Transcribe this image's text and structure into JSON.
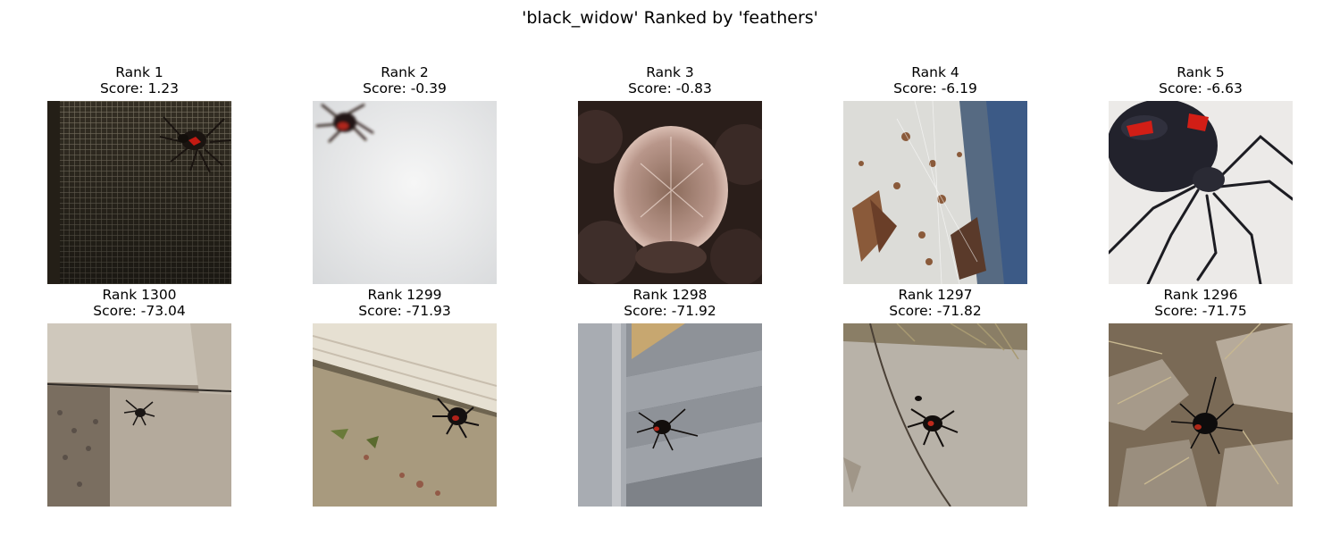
{
  "figure": {
    "title": "'black_widow' Ranked by 'feathers'"
  },
  "top": [
    {
      "rank": "Rank 1",
      "score": "Score: 1.23"
    },
    {
      "rank": "Rank 2",
      "score": "Score: -0.39"
    },
    {
      "rank": "Rank 3",
      "score": "Score: -0.83"
    },
    {
      "rank": "Rank 4",
      "score": "Score: -6.19"
    },
    {
      "rank": "Rank 5",
      "score": "Score: -6.63"
    }
  ],
  "bottom": [
    {
      "rank": "Rank 1300",
      "score": "Score: -73.04"
    },
    {
      "rank": "Rank 1299",
      "score": "Score: -71.93"
    },
    {
      "rank": "Rank 1298",
      "score": "Score: -71.92"
    },
    {
      "rank": "Rank 1297",
      "score": "Score: -71.82"
    },
    {
      "rank": "Rank 1296",
      "score": "Score: -71.75"
    }
  ]
}
